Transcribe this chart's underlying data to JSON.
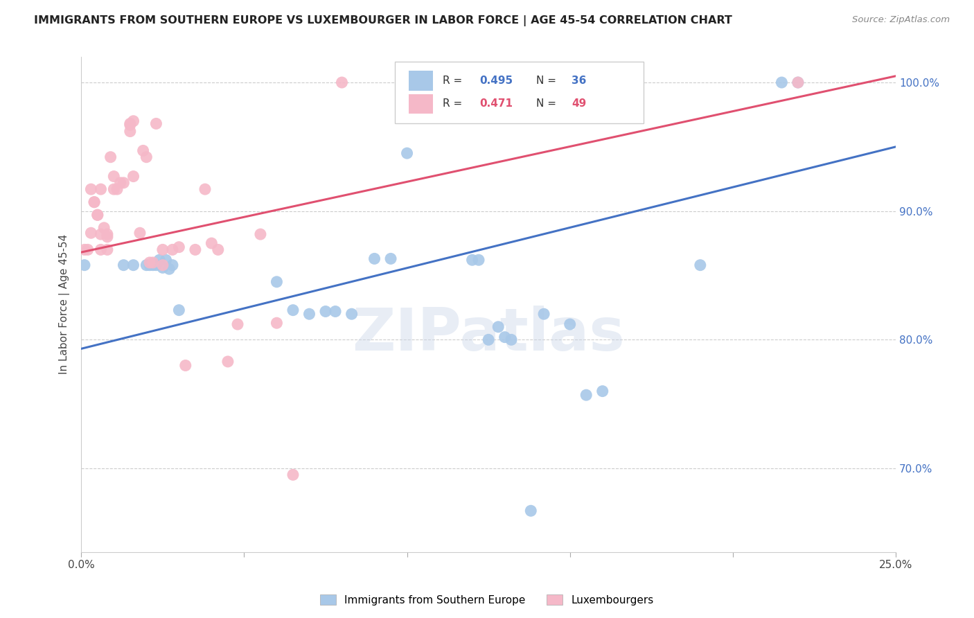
{
  "title": "IMMIGRANTS FROM SOUTHERN EUROPE VS LUXEMBOURGER IN LABOR FORCE | AGE 45-54 CORRELATION CHART",
  "source": "Source: ZipAtlas.com",
  "xlabel_blue": "Immigrants from Southern Europe",
  "xlabel_pink": "Luxembourgers",
  "ylabel": "In Labor Force | Age 45-54",
  "xlim": [
    0.0,
    0.25
  ],
  "ylim": [
    0.635,
    1.02
  ],
  "blue_R": 0.495,
  "blue_N": 36,
  "pink_R": 0.471,
  "pink_N": 49,
  "blue_color": "#a8c8e8",
  "pink_color": "#f5b8c8",
  "blue_line_color": "#4472c4",
  "pink_line_color": "#e05070",
  "watermark": "ZIPatlas",
  "blue_scatter_x": [
    0.001,
    0.013,
    0.016,
    0.02,
    0.021,
    0.022,
    0.023,
    0.024,
    0.025,
    0.026,
    0.027,
    0.028,
    0.03,
    0.06,
    0.065,
    0.07,
    0.075,
    0.078,
    0.083,
    0.09,
    0.095,
    0.1,
    0.12,
    0.122,
    0.125,
    0.128,
    0.13,
    0.132,
    0.138,
    0.142,
    0.15,
    0.155,
    0.16,
    0.19,
    0.215,
    0.22
  ],
  "blue_scatter_y": [
    0.858,
    0.858,
    0.858,
    0.858,
    0.858,
    0.858,
    0.858,
    0.862,
    0.856,
    0.862,
    0.855,
    0.858,
    0.823,
    0.845,
    0.823,
    0.82,
    0.822,
    0.822,
    0.82,
    0.863,
    0.863,
    0.945,
    0.862,
    0.862,
    0.8,
    0.81,
    0.802,
    0.8,
    0.667,
    0.82,
    0.812,
    0.757,
    0.76,
    0.858,
    1.0,
    1.0
  ],
  "pink_scatter_x": [
    0.001,
    0.002,
    0.003,
    0.003,
    0.004,
    0.004,
    0.005,
    0.005,
    0.006,
    0.006,
    0.006,
    0.007,
    0.008,
    0.008,
    0.008,
    0.009,
    0.01,
    0.01,
    0.011,
    0.012,
    0.013,
    0.015,
    0.015,
    0.015,
    0.016,
    0.016,
    0.018,
    0.019,
    0.02,
    0.021,
    0.022,
    0.023,
    0.025,
    0.025,
    0.028,
    0.03,
    0.032,
    0.035,
    0.038,
    0.04,
    0.042,
    0.045,
    0.048,
    0.055,
    0.06,
    0.065,
    0.08,
    0.16,
    0.22
  ],
  "pink_scatter_y": [
    0.87,
    0.87,
    0.917,
    0.883,
    0.907,
    0.907,
    0.897,
    0.897,
    0.87,
    0.882,
    0.917,
    0.887,
    0.87,
    0.882,
    0.88,
    0.942,
    0.927,
    0.917,
    0.917,
    0.922,
    0.922,
    0.962,
    0.967,
    0.968,
    0.97,
    0.927,
    0.883,
    0.947,
    0.942,
    0.86,
    0.86,
    0.968,
    0.858,
    0.87,
    0.87,
    0.872,
    0.78,
    0.87,
    0.917,
    0.875,
    0.87,
    0.783,
    0.812,
    0.882,
    0.813,
    0.695,
    1.0,
    1.0,
    1.0
  ],
  "yticks": [
    0.7,
    0.8,
    0.9,
    1.0
  ],
  "ytick_labels": [
    "70.0%",
    "80.0%",
    "90.0%",
    "100.0%"
  ],
  "xtick_positions": [
    0.0,
    0.05,
    0.1,
    0.15,
    0.2,
    0.25
  ],
  "xtick_labels": [
    "0.0%",
    "",
    "",
    "",
    "",
    "25.0%"
  ],
  "blue_line_x0": 0.0,
  "blue_line_y0": 0.793,
  "blue_line_x1": 0.25,
  "blue_line_y1": 0.95,
  "pink_line_x0": 0.0,
  "pink_line_y0": 0.868,
  "pink_line_x1": 0.25,
  "pink_line_y1": 1.005
}
